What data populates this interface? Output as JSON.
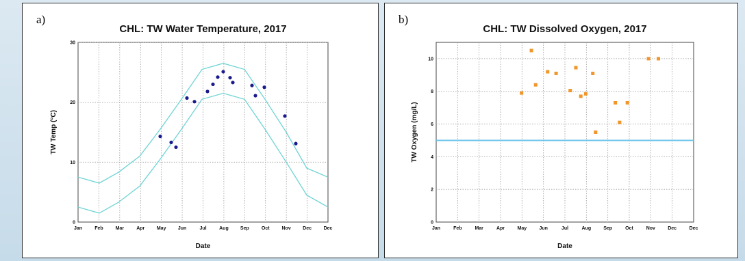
{
  "panels": [
    {
      "label": "a)"
    },
    {
      "label": "b)"
    }
  ],
  "colors": {
    "temp_points": "#1a1a8c",
    "envelope": "#6fd3d3",
    "do_points": "#f0962a",
    "do_threshold": "#6cc4ea",
    "grid": "#9a9a9a"
  },
  "chart_data": [
    {
      "type": "scatter",
      "title": "CHL: TW Water Temperature, 2017",
      "xlabel": "Date",
      "ylabel": "TW Temp (°C)",
      "x_ticks": [
        "Jan",
        "Feb",
        "Mar",
        "Apr",
        "May",
        "Jun",
        "Jul",
        "Aug",
        "Sep",
        "Oct",
        "Nov",
        "Dec",
        "Dec"
      ],
      "y_ticks": [
        "0",
        "10",
        "20",
        "30"
      ],
      "ylim": [
        0,
        30
      ],
      "grid": true,
      "series": [
        {
          "points": [
            {
              "x": "2017-05-01",
              "y": 14.3
            },
            {
              "x": "2017-05-17",
              "y": 13.3
            },
            {
              "x": "2017-05-24",
              "y": 12.5
            },
            {
              "x": "2017-06-09",
              "y": 20.7
            },
            {
              "x": "2017-06-20",
              "y": 20.1
            },
            {
              "x": "2017-07-09",
              "y": 21.8
            },
            {
              "x": "2017-07-17",
              "y": 23.0
            },
            {
              "x": "2017-07-24",
              "y": 24.2
            },
            {
              "x": "2017-08-01",
              "y": 25.1
            },
            {
              "x": "2017-08-11",
              "y": 24.1
            },
            {
              "x": "2017-08-15",
              "y": 23.3
            },
            {
              "x": "2017-09-12",
              "y": 22.8
            },
            {
              "x": "2017-09-17",
              "y": 21.1
            },
            {
              "x": "2017-09-30",
              "y": 22.5
            },
            {
              "x": "2017-10-30",
              "y": 17.7
            },
            {
              "x": "2017-11-15",
              "y": 13.1
            }
          ]
        }
      ],
      "upper_envelope": [
        {
          "x": "2017-01-01",
          "y": 7.5
        },
        {
          "x": "2017-02-01",
          "y": 6.5
        },
        {
          "x": "2017-03-01",
          "y": 8.3
        },
        {
          "x": "2017-04-01",
          "y": 11.0
        },
        {
          "x": "2017-05-01",
          "y": 15.5
        },
        {
          "x": "2017-06-01",
          "y": 20.5
        },
        {
          "x": "2017-07-01",
          "y": 25.5
        },
        {
          "x": "2017-08-01",
          "y": 26.5
        },
        {
          "x": "2017-09-01",
          "y": 25.5
        },
        {
          "x": "2017-10-01",
          "y": 20.5
        },
        {
          "x": "2017-11-01",
          "y": 15.0
        },
        {
          "x": "2017-12-01",
          "y": 9.0
        },
        {
          "x": "2018-01-01",
          "y": 7.5
        }
      ],
      "lower_envelope": [
        {
          "x": "2017-01-01",
          "y": 2.5
        },
        {
          "x": "2017-02-01",
          "y": 1.5
        },
        {
          "x": "2017-03-01",
          "y": 3.3
        },
        {
          "x": "2017-04-01",
          "y": 6.0
        },
        {
          "x": "2017-05-01",
          "y": 10.5
        },
        {
          "x": "2017-06-01",
          "y": 15.5
        },
        {
          "x": "2017-07-01",
          "y": 20.5
        },
        {
          "x": "2017-08-01",
          "y": 21.5
        },
        {
          "x": "2017-09-01",
          "y": 20.5
        },
        {
          "x": "2017-10-01",
          "y": 15.5
        },
        {
          "x": "2017-11-01",
          "y": 10.0
        },
        {
          "x": "2017-12-01",
          "y": 4.5
        },
        {
          "x": "2018-01-01",
          "y": 2.5
        }
      ]
    },
    {
      "type": "scatter",
      "title": "CHL: TW Dissolved Oxygen, 2017",
      "xlabel": "Date",
      "ylabel": "TW Oxygen (mg/L)",
      "x_ticks": [
        "Jan",
        "Feb",
        "Mar",
        "Apr",
        "May",
        "Jun",
        "Jul",
        "Aug",
        "Sep",
        "Oct",
        "Nov",
        "Dec",
        "Dec"
      ],
      "y_ticks": [
        "0",
        "2",
        "4",
        "6",
        "8",
        "10"
      ],
      "ylim": [
        0,
        11
      ],
      "grid": true,
      "threshold": 5,
      "series": [
        {
          "points": [
            {
              "x": "2017-05-02",
              "y": 7.9
            },
            {
              "x": "2017-05-16",
              "y": 10.5
            },
            {
              "x": "2017-05-22",
              "y": 8.4
            },
            {
              "x": "2017-06-08",
              "y": 9.2
            },
            {
              "x": "2017-06-20",
              "y": 9.1
            },
            {
              "x": "2017-07-10",
              "y": 8.05
            },
            {
              "x": "2017-07-18",
              "y": 9.45
            },
            {
              "x": "2017-07-25",
              "y": 7.7
            },
            {
              "x": "2017-08-01",
              "y": 7.85
            },
            {
              "x": "2017-08-11",
              "y": 9.1
            },
            {
              "x": "2017-08-15",
              "y": 5.5
            },
            {
              "x": "2017-09-12",
              "y": 7.3
            },
            {
              "x": "2017-09-18",
              "y": 6.1
            },
            {
              "x": "2017-09-29",
              "y": 7.3
            },
            {
              "x": "2017-10-29",
              "y": 10.0
            },
            {
              "x": "2017-11-12",
              "y": 10.0
            }
          ]
        }
      ]
    }
  ]
}
